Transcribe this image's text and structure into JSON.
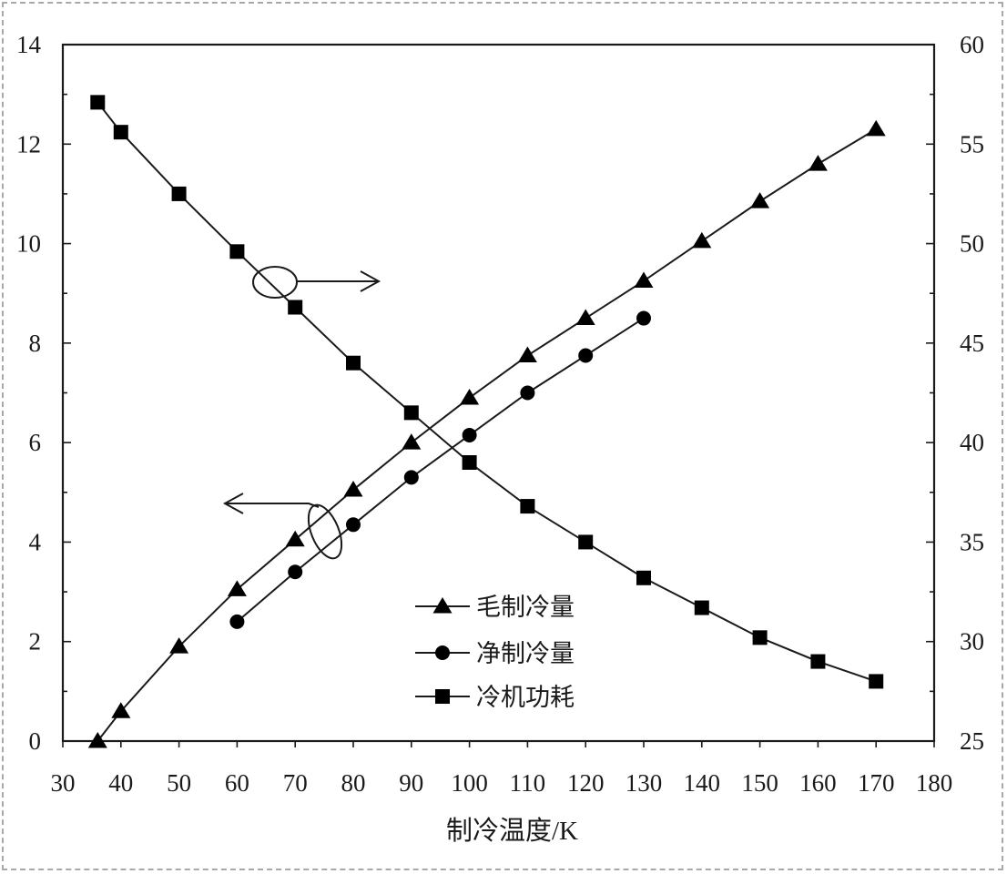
{
  "chart_data": {
    "type": "line",
    "title": "",
    "xlabel": "制冷温度/K",
    "ylabel": "",
    "y2label": "",
    "xlim": [
      30,
      180
    ],
    "ylim": [
      0,
      14
    ],
    "y2lim": [
      25,
      60
    ],
    "x_ticks": [
      "30",
      "40",
      "50",
      "60",
      "70",
      "80",
      "90",
      "100",
      "110",
      "120",
      "130",
      "140",
      "150",
      "160",
      "170",
      "180"
    ],
    "y_ticks": [
      "0",
      "2",
      "4",
      "6",
      "8",
      "10",
      "12",
      "14"
    ],
    "y2_ticks": [
      "25",
      "30",
      "35",
      "40",
      "45",
      "50",
      "55",
      "60"
    ],
    "grid": false,
    "legend_position": "bottom-center",
    "series": [
      {
        "name": "毛制冷量",
        "axis": "left",
        "marker": "triangle",
        "x": [
          36,
          40,
          50,
          60,
          70,
          80,
          90,
          100,
          110,
          120,
          130,
          140,
          150,
          160,
          170
        ],
        "y": [
          0,
          0.6,
          1.9,
          3.05,
          4.05,
          5.05,
          6.0,
          6.9,
          7.75,
          8.5,
          9.25,
          10.05,
          10.85,
          11.6,
          12.3
        ]
      },
      {
        "name": "净制冷量",
        "axis": "left",
        "marker": "circle",
        "x": [
          60,
          70,
          80,
          90,
          100,
          110,
          120,
          130
        ],
        "y": [
          2.4,
          3.4,
          4.35,
          5.3,
          6.15,
          7.0,
          7.75,
          8.5
        ]
      },
      {
        "name": "冷机功耗",
        "axis": "right",
        "marker": "square",
        "x": [
          36,
          40,
          50,
          60,
          70,
          80,
          90,
          100,
          110,
          120,
          130,
          140,
          150,
          160,
          170
        ],
        "y": [
          57.1,
          55.6,
          52.5,
          49.6,
          46.8,
          44.0,
          41.5,
          39.0,
          36.8,
          35.0,
          33.2,
          31.7,
          30.2,
          29.0,
          28.0
        ]
      }
    ],
    "annotations": [
      {
        "kind": "ellipse-arrow",
        "points_to": "right",
        "target_series": "冷机功耗"
      },
      {
        "kind": "ellipse-arrow",
        "points_to": "left",
        "target_series": "毛制冷量"
      }
    ],
    "colors": {
      "line": "#1a1a1a",
      "marker": "#000000"
    }
  }
}
